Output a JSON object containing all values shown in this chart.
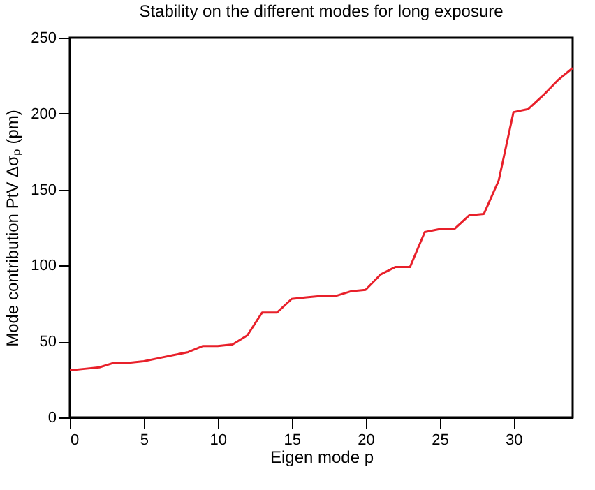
{
  "chart_data": {
    "type": "line",
    "title": "Stability on the different modes for long exposure",
    "xlabel": "Eigen mode p",
    "ylabel": "Mode contribution PtV Δσₚ (pm)",
    "x": [
      0,
      1,
      2,
      3,
      4,
      5,
      6,
      7,
      8,
      9,
      10,
      11,
      12,
      13,
      14,
      15,
      16,
      17,
      18,
      19,
      20,
      21,
      22,
      23,
      24,
      25,
      26,
      27,
      28,
      29,
      30,
      31,
      32,
      33,
      34
    ],
    "series": [
      {
        "color": "#e8202a",
        "values": [
          31,
          32,
          33,
          36,
          36,
          37,
          39,
          41,
          43,
          47,
          47,
          48,
          54,
          69,
          69,
          78,
          79,
          80,
          80,
          83,
          84,
          94,
          99,
          99,
          122,
          124,
          124,
          133,
          134,
          156,
          201,
          203,
          212,
          222,
          230
        ]
      }
    ],
    "xlim": [
      0,
      34
    ],
    "xticks": [
      0,
      5,
      10,
      15,
      20,
      25,
      30
    ],
    "ylim": [
      0,
      250
    ],
    "yticks": [
      0,
      50,
      100,
      150,
      200,
      250
    ],
    "grid": false,
    "marker": "none",
    "line_style": "solid"
  }
}
